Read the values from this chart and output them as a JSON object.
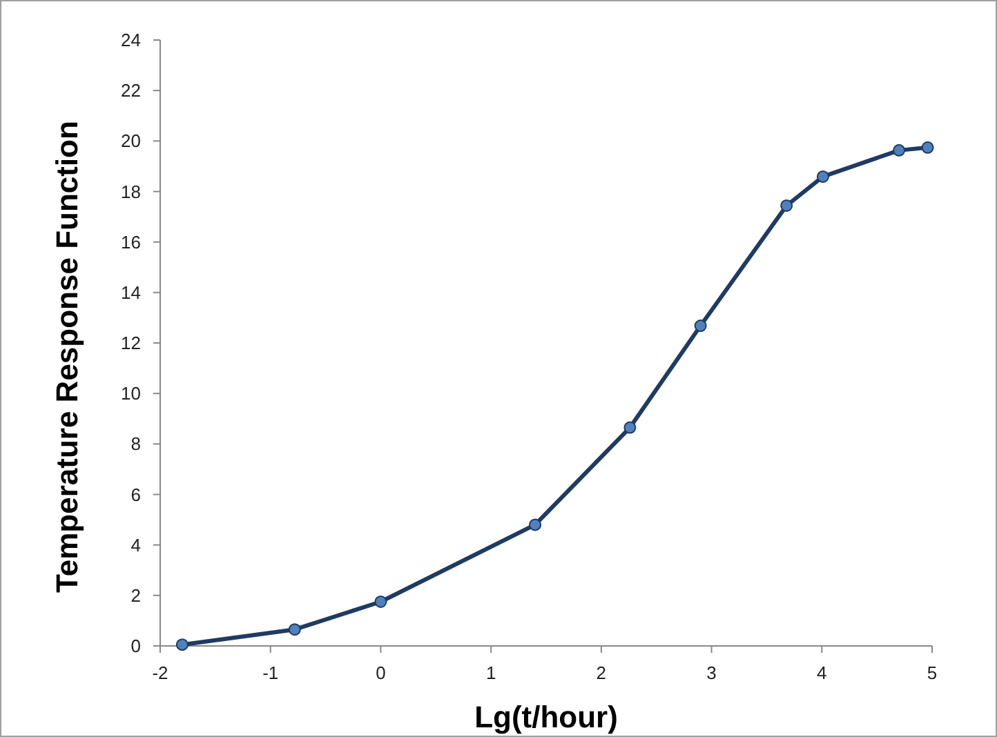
{
  "chart_data": {
    "type": "line",
    "xlabel": "Lg(t/hour)",
    "ylabel": "Temperature Response Function",
    "x": [
      -1.8,
      -0.78,
      0,
      1.4,
      2.26,
      2.9,
      3.68,
      4.01,
      4.7,
      4.96
    ],
    "series": [
      {
        "color": "#1f3b63",
        "values": [
          0.05,
          0.65,
          1.75,
          4.8,
          8.65,
          12.68,
          17.44,
          18.59,
          19.63,
          19.74
        ]
      }
    ],
    "xlim": [
      -2,
      5
    ],
    "xticks": [
      -2,
      -1,
      0,
      1,
      2,
      3,
      4,
      5
    ],
    "ylim": [
      0,
      24
    ],
    "yticks": [
      0,
      2,
      4,
      6,
      8,
      10,
      12,
      14,
      16,
      18,
      20,
      22,
      24
    ],
    "marker": "circle",
    "line_style": "solid"
  }
}
